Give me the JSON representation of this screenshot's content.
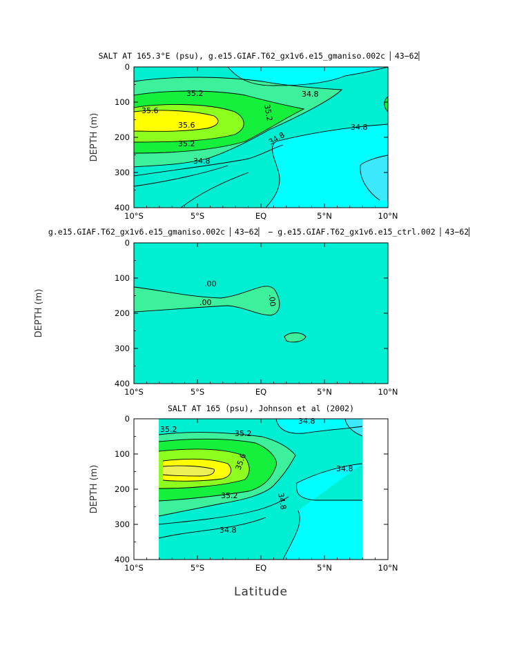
{
  "colors": {
    "cyan": "#00ffff",
    "aqua": "#3be9fa",
    "teal": "#00eed2",
    "seafoam": "#3cf09c",
    "green": "#14f03c",
    "lime": "#8cff1e",
    "yellow": "#ffff00",
    "pale_yellow": "#ecf055"
  },
  "chart_data": [
    {
      "type": "contour",
      "title": "SALT AT 165.3°E (psu), g.e15.GIAF.T62_gx1v6.e15_gmaniso.002c ▏43−62▏",
      "ylabel": "DEPTH (m)",
      "xlabel": "",
      "xlim": [
        "10°S",
        "10°N"
      ],
      "ylim": [
        0,
        400
      ],
      "xticks": [
        "10°S",
        "5°S",
        "EQ",
        "5°N",
        "10°N"
      ],
      "yticks": [
        "0",
        "100",
        "200",
        "300",
        "400"
      ],
      "contour_labels": [
        "35.2",
        "35.6",
        "35.6",
        "35.2",
        "34.8",
        "34.8",
        "34.8",
        "35.2",
        "34.8"
      ],
      "contour_levels": [
        34.8,
        35.0,
        35.2,
        35.4,
        35.6
      ]
    },
    {
      "type": "contour",
      "title": "g.e15.GIAF.T62_gx1v6.e15_gmaniso.002c ▏43−62▏ − g.e15.GIAF.T62_gx1v6.e15_ctrl.002 ▏43−62▏",
      "ylabel": "DEPTH (m)",
      "xlabel": "",
      "xlim": [
        "10°S",
        "10°N"
      ],
      "ylim": [
        0,
        400
      ],
      "xticks": [
        "10°S",
        "5°S",
        "EQ",
        "5°N",
        "10°N"
      ],
      "yticks": [
        "0",
        "100",
        "200",
        "300",
        "400"
      ],
      "contour_labels": [
        ".00",
        ".00",
        ".00"
      ],
      "contour_levels": [
        0.0
      ]
    },
    {
      "type": "contour",
      "title": "SALT AT 165 (psu), Johnson et al (2002)",
      "ylabel": "DEPTH (m)",
      "xlabel": "Latitude",
      "xlim": [
        "10°S",
        "10°N"
      ],
      "ylim": [
        0,
        400
      ],
      "xticks": [
        "10°S",
        "5°S",
        "EQ",
        "5°N",
        "10°N"
      ],
      "yticks": [
        "0",
        "100",
        "200",
        "300",
        "400"
      ],
      "contour_labels": [
        "35.2",
        "35.2",
        "35.6",
        "35.2",
        "34.8",
        "34.8",
        "34.8",
        "34.8"
      ],
      "contour_levels": [
        34.8,
        35.0,
        35.2,
        35.4,
        35.6
      ],
      "data_extent_lat": [
        -8,
        8
      ]
    }
  ]
}
